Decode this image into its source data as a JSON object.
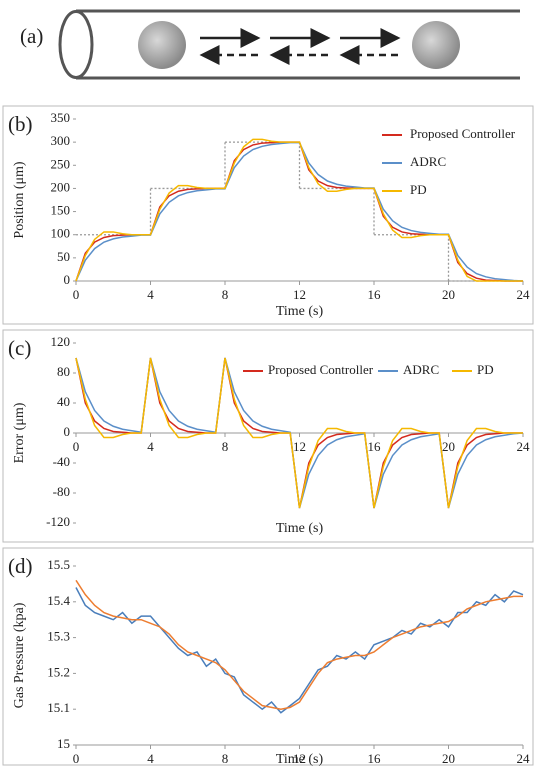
{
  "diagram": {
    "label": "(a)"
  },
  "chart_data": [
    {
      "type": "line",
      "label": "(b)",
      "y_label": "Position (μm)",
      "x_label": "Time (s)",
      "xlim": [
        0,
        24
      ],
      "xticks": [
        0,
        4,
        8,
        12,
        16,
        20,
        24
      ],
      "ylim": [
        0,
        350
      ],
      "yticks": [
        0,
        50,
        100,
        150,
        200,
        250,
        300,
        350
      ],
      "legend": "right",
      "x": [
        0,
        0.5,
        1,
        1.5,
        2,
        2.5,
        3,
        3.5,
        4,
        4.5,
        5,
        5.5,
        6,
        6.5,
        7,
        7.5,
        8,
        8.5,
        9,
        9.5,
        10,
        10.5,
        11,
        11.5,
        12,
        12.5,
        13,
        13.5,
        14,
        14.5,
        15,
        15.5,
        16,
        16.5,
        17,
        17.5,
        18,
        18.5,
        19,
        19.5,
        20,
        20.5,
        21,
        21.5,
        22,
        22.5,
        23,
        23.5,
        24
      ],
      "series": [
        {
          "color": "#999999",
          "dash": true,
          "step": true,
          "x": [
            0,
            4,
            8,
            12,
            16,
            20,
            24
          ],
          "values": [
            100,
            200,
            300,
            200,
            100,
            0,
            0
          ]
        },
        {
          "name": "Proposed Controller",
          "color": "#d42a1e",
          "values": [
            0,
            60,
            84,
            94,
            98,
            99,
            100,
            100,
            100,
            160,
            184,
            194,
            198,
            199,
            200,
            200,
            200,
            260,
            284,
            294,
            298,
            299,
            300,
            300,
            300,
            240,
            216,
            206,
            202,
            201,
            200,
            200,
            200,
            140,
            116,
            106,
            102,
            101,
            100,
            100,
            100,
            40,
            16,
            6,
            2,
            1,
            0,
            0,
            0
          ]
        },
        {
          "name": "ADRC",
          "color": "#5b8fc9",
          "values": [
            0,
            45,
            70,
            84,
            91,
            95,
            97,
            99,
            99,
            145,
            170,
            184,
            191,
            195,
            197,
            199,
            199,
            245,
            270,
            284,
            291,
            295,
            297,
            299,
            299,
            255,
            230,
            216,
            209,
            205,
            203,
            201,
            201,
            155,
            130,
            116,
            109,
            105,
            103,
            101,
            101,
            55,
            30,
            16,
            9,
            5,
            3,
            1,
            0
          ]
        },
        {
          "name": "PD",
          "color": "#f5b800",
          "values": [
            0,
            55,
            90,
            106,
            106,
            102,
            100,
            100,
            100,
            155,
            190,
            206,
            206,
            202,
            200,
            200,
            200,
            255,
            290,
            306,
            306,
            302,
            300,
            300,
            300,
            245,
            210,
            194,
            194,
            198,
            200,
            200,
            200,
            145,
            110,
            94,
            94,
            98,
            100,
            100,
            100,
            45,
            10,
            0,
            0,
            0,
            0,
            0,
            0
          ]
        }
      ]
    },
    {
      "type": "line",
      "label": "(c)",
      "y_label": "Error (μm)",
      "x_label": "Time (s)",
      "xlim": [
        0,
        24
      ],
      "xticks": [
        0,
        4,
        8,
        12,
        16,
        20,
        24
      ],
      "ylim": [
        -120,
        120
      ],
      "yticks": [
        -120,
        -80,
        -40,
        0,
        40,
        80,
        120
      ],
      "legend": "top",
      "x": [
        0,
        0.5,
        1,
        1.5,
        2,
        2.5,
        3,
        3.5,
        4,
        4.5,
        5,
        5.5,
        6,
        6.5,
        7,
        7.5,
        8,
        8.5,
        9,
        9.5,
        10,
        10.5,
        11,
        11.5,
        12,
        12.5,
        13,
        13.5,
        14,
        14.5,
        15,
        15.5,
        16,
        16.5,
        17,
        17.5,
        18,
        18.5,
        19,
        19.5,
        20,
        20.5,
        21,
        21.5,
        22,
        22.5,
        23,
        23.5,
        24
      ],
      "series": [
        {
          "name": "Proposed Controller",
          "color": "#d42a1e",
          "values": [
            100,
            40,
            16,
            6,
            2,
            1,
            0,
            0,
            100,
            40,
            16,
            6,
            2,
            1,
            0,
            0,
            100,
            40,
            16,
            6,
            2,
            1,
            0,
            0,
            -100,
            -40,
            -16,
            -6,
            -2,
            -1,
            0,
            0,
            -100,
            -40,
            -16,
            -6,
            -2,
            -1,
            0,
            0,
            -100,
            -40,
            -16,
            -6,
            -2,
            -1,
            0,
            0,
            0
          ]
        },
        {
          "name": "ADRC",
          "color": "#5b8fc9",
          "values": [
            100,
            55,
            30,
            16,
            9,
            5,
            3,
            1,
            100,
            55,
            30,
            16,
            9,
            5,
            3,
            1,
            100,
            55,
            30,
            16,
            9,
            5,
            3,
            1,
            -100,
            -55,
            -30,
            -16,
            -9,
            -5,
            -3,
            -1,
            -100,
            -55,
            -30,
            -16,
            -9,
            -5,
            -3,
            -1,
            -100,
            -55,
            -30,
            -16,
            -9,
            -5,
            -3,
            -1,
            0
          ]
        },
        {
          "name": "PD",
          "color": "#f5b800",
          "values": [
            100,
            45,
            10,
            -6,
            -6,
            -2,
            0,
            0,
            100,
            45,
            10,
            -6,
            -6,
            -2,
            0,
            0,
            100,
            45,
            10,
            -6,
            -6,
            -2,
            0,
            0,
            -100,
            -45,
            -10,
            6,
            6,
            2,
            0,
            0,
            -100,
            -45,
            -10,
            6,
            6,
            2,
            0,
            0,
            -100,
            -45,
            -10,
            6,
            6,
            2,
            0,
            0,
            0
          ]
        }
      ]
    },
    {
      "type": "line",
      "label": "(d)",
      "y_label": "Gas Pressure (kpa)",
      "x_label": "Time (s)",
      "xlim": [
        0,
        24
      ],
      "xticks": [
        0,
        4,
        8,
        12,
        16,
        20,
        24
      ],
      "ylim": [
        15,
        15.5
      ],
      "yticks": [
        15,
        15.1,
        15.2,
        15.3,
        15.4,
        15.5
      ],
      "x": [
        0,
        0.5,
        1,
        1.5,
        2,
        2.5,
        3,
        3.5,
        4,
        4.5,
        5,
        5.5,
        6,
        6.5,
        7,
        7.5,
        8,
        8.5,
        9,
        9.5,
        10,
        10.5,
        11,
        11.5,
        12,
        12.5,
        13,
        13.5,
        14,
        14.5,
        15,
        15.5,
        16,
        16.5,
        17,
        17.5,
        18,
        18.5,
        19,
        19.5,
        20,
        20.5,
        21,
        21.5,
        22,
        22.5,
        23,
        23.5,
        24
      ],
      "series": [
        {
          "color": "#4a7ebb",
          "values": [
            15.44,
            15.39,
            15.37,
            15.36,
            15.35,
            15.37,
            15.34,
            15.36,
            15.36,
            15.33,
            15.3,
            15.27,
            15.25,
            15.26,
            15.22,
            15.24,
            15.2,
            15.19,
            15.14,
            15.12,
            15.1,
            15.12,
            15.09,
            15.11,
            15.13,
            15.17,
            15.21,
            15.22,
            15.25,
            15.24,
            15.26,
            15.24,
            15.28,
            15.29,
            15.3,
            15.32,
            15.31,
            15.34,
            15.33,
            15.35,
            15.33,
            15.37,
            15.37,
            15.4,
            15.39,
            15.42,
            15.4,
            15.43,
            15.42
          ]
        },
        {
          "color": "#ed7d31",
          "values": [
            15.46,
            15.42,
            15.39,
            15.37,
            15.36,
            15.355,
            15.35,
            15.35,
            15.34,
            15.33,
            15.31,
            15.28,
            15.26,
            15.25,
            15.24,
            15.23,
            15.21,
            15.18,
            15.15,
            15.13,
            15.11,
            15.105,
            15.1,
            15.105,
            15.12,
            15.16,
            15.2,
            15.23,
            15.24,
            15.245,
            15.25,
            15.25,
            15.26,
            15.28,
            15.3,
            15.31,
            15.32,
            15.33,
            15.335,
            15.34,
            15.345,
            15.36,
            15.38,
            15.39,
            15.4,
            15.405,
            15.41,
            15.415,
            15.415
          ]
        }
      ]
    }
  ]
}
